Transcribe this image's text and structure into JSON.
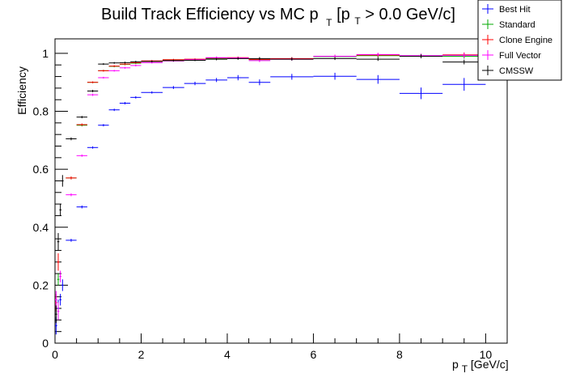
{
  "chart_data": {
    "type": "scatter",
    "title": {
      "pre": "Build Track Efficiency vs MC p",
      "sub1": "T",
      "mid": " [p",
      "sub2": "T",
      "post": " > 0.0 GeV/c]"
    },
    "xlabel": {
      "pre": "p",
      "sub": "T",
      "post": " [GeV/c]"
    },
    "ylabel": "Efficiency",
    "xlim": [
      0,
      10.5
    ],
    "ylim": [
      0,
      1.05
    ],
    "x_ticks": [
      {
        "v": 0,
        "label": "0"
      },
      {
        "v": 2,
        "label": "2"
      },
      {
        "v": 4,
        "label": "4"
      },
      {
        "v": 6,
        "label": "6"
      },
      {
        "v": 8,
        "label": "8"
      },
      {
        "v": 10,
        "label": "10"
      }
    ],
    "y_ticks": [
      {
        "v": 0,
        "label": "0"
      },
      {
        "v": 0.2,
        "label": "0.2"
      },
      {
        "v": 0.4,
        "label": "0.4"
      },
      {
        "v": 0.6,
        "label": "0.6"
      },
      {
        "v": 0.8,
        "label": "0.8"
      },
      {
        "v": 1,
        "label": "1"
      }
    ],
    "legend_position": "top-right",
    "series": [
      {
        "name": "Best Hit",
        "color": "#0000ff",
        "points": [
          {
            "x": 0.025,
            "y": 0.06,
            "xerr": 0.025,
            "yerr": 0.03
          },
          {
            "x": 0.075,
            "y": 0.12,
            "xerr": 0.025,
            "yerr": 0.03
          },
          {
            "x": 0.125,
            "y": 0.15,
            "xerr": 0.025,
            "yerr": 0.02
          },
          {
            "x": 0.175,
            "y": 0.2,
            "xerr": 0.025,
            "yerr": 0.02
          },
          {
            "x": 0.375,
            "y": 0.355,
            "xerr": 0.125,
            "yerr": 0.005
          },
          {
            "x": 0.625,
            "y": 0.47,
            "xerr": 0.125,
            "yerr": 0.005
          },
          {
            "x": 0.875,
            "y": 0.675,
            "xerr": 0.125,
            "yerr": 0.004
          },
          {
            "x": 1.125,
            "y": 0.752,
            "xerr": 0.125,
            "yerr": 0.004
          },
          {
            "x": 1.375,
            "y": 0.805,
            "xerr": 0.125,
            "yerr": 0.004
          },
          {
            "x": 1.625,
            "y": 0.828,
            "xerr": 0.125,
            "yerr": 0.004
          },
          {
            "x": 1.875,
            "y": 0.848,
            "xerr": 0.125,
            "yerr": 0.004
          },
          {
            "x": 2.25,
            "y": 0.865,
            "xerr": 0.25,
            "yerr": 0.004
          },
          {
            "x": 2.75,
            "y": 0.882,
            "xerr": 0.25,
            "yerr": 0.005
          },
          {
            "x": 3.25,
            "y": 0.896,
            "xerr": 0.25,
            "yerr": 0.006
          },
          {
            "x": 3.75,
            "y": 0.908,
            "xerr": 0.25,
            "yerr": 0.007
          },
          {
            "x": 4.25,
            "y": 0.916,
            "xerr": 0.25,
            "yerr": 0.009
          },
          {
            "x": 4.75,
            "y": 0.9,
            "xerr": 0.25,
            "yerr": 0.01
          },
          {
            "x": 5.5,
            "y": 0.919,
            "xerr": 0.5,
            "yerr": 0.01
          },
          {
            "x": 6.5,
            "y": 0.921,
            "xerr": 0.5,
            "yerr": 0.012
          },
          {
            "x": 7.5,
            "y": 0.91,
            "xerr": 0.5,
            "yerr": 0.015
          },
          {
            "x": 8.5,
            "y": 0.862,
            "xerr": 0.5,
            "yerr": 0.02
          },
          {
            "x": 9.5,
            "y": 0.893,
            "xerr": 0.5,
            "yerr": 0.022
          }
        ]
      },
      {
        "name": "Standard",
        "color": "#00aa00",
        "points": [
          {
            "x": 0.075,
            "y": 0.22,
            "xerr": 0.025,
            "yerr": 0.02
          },
          {
            "x": 0.375,
            "y": 0.57,
            "xerr": 0.125,
            "yerr": 0.005
          },
          {
            "x": 0.625,
            "y": 0.752,
            "xerr": 0.125,
            "yerr": 0.004
          },
          {
            "x": 0.875,
            "y": 0.9,
            "xerr": 0.125,
            "yerr": 0.003
          },
          {
            "x": 1.125,
            "y": 0.94,
            "xerr": 0.125,
            "yerr": 0.003
          },
          {
            "x": 1.375,
            "y": 0.955,
            "xerr": 0.125,
            "yerr": 0.003
          },
          {
            "x": 1.625,
            "y": 0.962,
            "xerr": 0.125,
            "yerr": 0.003
          },
          {
            "x": 1.875,
            "y": 0.966,
            "xerr": 0.125,
            "yerr": 0.003
          },
          {
            "x": 2.25,
            "y": 0.972,
            "xerr": 0.25,
            "yerr": 0.003
          },
          {
            "x": 2.75,
            "y": 0.976,
            "xerr": 0.25,
            "yerr": 0.003
          },
          {
            "x": 3.25,
            "y": 0.979,
            "xerr": 0.25,
            "yerr": 0.003
          },
          {
            "x": 3.75,
            "y": 0.982,
            "xerr": 0.25,
            "yerr": 0.004
          },
          {
            "x": 4.25,
            "y": 0.983,
            "xerr": 0.25,
            "yerr": 0.004
          },
          {
            "x": 4.75,
            "y": 0.978,
            "xerr": 0.25,
            "yerr": 0.005
          },
          {
            "x": 5.5,
            "y": 0.981,
            "xerr": 0.5,
            "yerr": 0.005
          },
          {
            "x": 6.5,
            "y": 0.989,
            "xerr": 0.5,
            "yerr": 0.005
          },
          {
            "x": 7.5,
            "y": 0.992,
            "xerr": 0.5,
            "yerr": 0.006
          },
          {
            "x": 8.5,
            "y": 0.99,
            "xerr": 0.5,
            "yerr": 0.007
          },
          {
            "x": 9.5,
            "y": 0.99,
            "xerr": 0.5,
            "yerr": 0.008
          }
        ]
      },
      {
        "name": "Clone Engine",
        "color": "#ff0000",
        "points": [
          {
            "x": 0.025,
            "y": 0.14,
            "xerr": 0.025,
            "yerr": 0.03
          },
          {
            "x": 0.075,
            "y": 0.28,
            "xerr": 0.025,
            "yerr": 0.03
          },
          {
            "x": 0.375,
            "y": 0.57,
            "xerr": 0.125,
            "yerr": 0.005
          },
          {
            "x": 0.625,
            "y": 0.754,
            "xerr": 0.125,
            "yerr": 0.004
          },
          {
            "x": 0.875,
            "y": 0.9,
            "xerr": 0.125,
            "yerr": 0.003
          },
          {
            "x": 1.125,
            "y": 0.94,
            "xerr": 0.125,
            "yerr": 0.003
          },
          {
            "x": 1.375,
            "y": 0.956,
            "xerr": 0.125,
            "yerr": 0.003
          },
          {
            "x": 1.625,
            "y": 0.963,
            "xerr": 0.125,
            "yerr": 0.003
          },
          {
            "x": 1.875,
            "y": 0.968,
            "xerr": 0.125,
            "yerr": 0.003
          },
          {
            "x": 2.25,
            "y": 0.974,
            "xerr": 0.25,
            "yerr": 0.003
          },
          {
            "x": 2.75,
            "y": 0.978,
            "xerr": 0.25,
            "yerr": 0.003
          },
          {
            "x": 3.25,
            "y": 0.98,
            "xerr": 0.25,
            "yerr": 0.003
          },
          {
            "x": 3.75,
            "y": 0.984,
            "xerr": 0.25,
            "yerr": 0.004
          },
          {
            "x": 4.25,
            "y": 0.985,
            "xerr": 0.25,
            "yerr": 0.004
          },
          {
            "x": 4.75,
            "y": 0.979,
            "xerr": 0.25,
            "yerr": 0.005
          },
          {
            "x": 5.5,
            "y": 0.982,
            "xerr": 0.5,
            "yerr": 0.005
          },
          {
            "x": 6.5,
            "y": 0.99,
            "xerr": 0.5,
            "yerr": 0.005
          },
          {
            "x": 7.5,
            "y": 0.994,
            "xerr": 0.5,
            "yerr": 0.006
          },
          {
            "x": 8.5,
            "y": 0.991,
            "xerr": 0.5,
            "yerr": 0.007
          },
          {
            "x": 9.5,
            "y": 0.995,
            "xerr": 0.5,
            "yerr": 0.008
          }
        ]
      },
      {
        "name": "Full Vector",
        "color": "#ff00ff",
        "points": [
          {
            "x": 0.025,
            "y": 0.15,
            "xerr": 0.025,
            "yerr": 0.03
          },
          {
            "x": 0.075,
            "y": 0.11,
            "xerr": 0.025,
            "yerr": 0.03
          },
          {
            "x": 0.125,
            "y": 0.23,
            "xerr": 0.025,
            "yerr": 0.02
          },
          {
            "x": 0.375,
            "y": 0.512,
            "xerr": 0.125,
            "yerr": 0.005
          },
          {
            "x": 0.625,
            "y": 0.647,
            "xerr": 0.125,
            "yerr": 0.004
          },
          {
            "x": 0.875,
            "y": 0.857,
            "xerr": 0.125,
            "yerr": 0.004
          },
          {
            "x": 1.125,
            "y": 0.916,
            "xerr": 0.125,
            "yerr": 0.003
          },
          {
            "x": 1.375,
            "y": 0.94,
            "xerr": 0.125,
            "yerr": 0.003
          },
          {
            "x": 1.625,
            "y": 0.95,
            "xerr": 0.125,
            "yerr": 0.003
          },
          {
            "x": 1.875,
            "y": 0.958,
            "xerr": 0.125,
            "yerr": 0.003
          },
          {
            "x": 2.25,
            "y": 0.968,
            "xerr": 0.25,
            "yerr": 0.003
          },
          {
            "x": 2.75,
            "y": 0.974,
            "xerr": 0.25,
            "yerr": 0.003
          },
          {
            "x": 3.25,
            "y": 0.978,
            "xerr": 0.25,
            "yerr": 0.003
          },
          {
            "x": 3.75,
            "y": 0.985,
            "xerr": 0.25,
            "yerr": 0.004
          },
          {
            "x": 4.25,
            "y": 0.984,
            "xerr": 0.25,
            "yerr": 0.004
          },
          {
            "x": 4.75,
            "y": 0.975,
            "xerr": 0.25,
            "yerr": 0.005
          },
          {
            "x": 5.5,
            "y": 0.98,
            "xerr": 0.5,
            "yerr": 0.005
          },
          {
            "x": 6.5,
            "y": 0.99,
            "xerr": 0.5,
            "yerr": 0.005
          },
          {
            "x": 7.5,
            "y": 0.996,
            "xerr": 0.5,
            "yerr": 0.006
          },
          {
            "x": 8.5,
            "y": 0.992,
            "xerr": 0.5,
            "yerr": 0.007
          },
          {
            "x": 9.5,
            "y": 0.993,
            "xerr": 0.5,
            "yerr": 0.008
          }
        ]
      },
      {
        "name": "CMSSW",
        "color": "#000000",
        "points": [
          {
            "x": 0.025,
            "y": 0.1,
            "xerr": 0.025,
            "yerr": 0.03
          },
          {
            "x": 0.075,
            "y": 0.35,
            "xerr": 0.025,
            "yerr": 0.03
          },
          {
            "x": 0.125,
            "y": 0.46,
            "xerr": 0.025,
            "yerr": 0.02
          },
          {
            "x": 0.175,
            "y": 0.56,
            "xerr": 0.025,
            "yerr": 0.02
          },
          {
            "x": 0.375,
            "y": 0.705,
            "xerr": 0.125,
            "yerr": 0.005
          },
          {
            "x": 0.625,
            "y": 0.78,
            "xerr": 0.125,
            "yerr": 0.004
          },
          {
            "x": 0.875,
            "y": 0.87,
            "xerr": 0.125,
            "yerr": 0.004
          },
          {
            "x": 1.125,
            "y": 0.963,
            "xerr": 0.125,
            "yerr": 0.003
          },
          {
            "x": 1.375,
            "y": 0.967,
            "xerr": 0.125,
            "yerr": 0.003
          },
          {
            "x": 1.625,
            "y": 0.968,
            "xerr": 0.125,
            "yerr": 0.003
          },
          {
            "x": 1.875,
            "y": 0.971,
            "xerr": 0.125,
            "yerr": 0.003
          },
          {
            "x": 2.25,
            "y": 0.972,
            "xerr": 0.25,
            "yerr": 0.003
          },
          {
            "x": 2.75,
            "y": 0.975,
            "xerr": 0.25,
            "yerr": 0.003
          },
          {
            "x": 3.25,
            "y": 0.976,
            "xerr": 0.25,
            "yerr": 0.003
          },
          {
            "x": 3.75,
            "y": 0.98,
            "xerr": 0.25,
            "yerr": 0.004
          },
          {
            "x": 4.25,
            "y": 0.982,
            "xerr": 0.25,
            "yerr": 0.004
          },
          {
            "x": 4.75,
            "y": 0.982,
            "xerr": 0.25,
            "yerr": 0.005
          },
          {
            "x": 5.5,
            "y": 0.98,
            "xerr": 0.5,
            "yerr": 0.005
          },
          {
            "x": 6.5,
            "y": 0.982,
            "xerr": 0.5,
            "yerr": 0.005
          },
          {
            "x": 7.5,
            "y": 0.98,
            "xerr": 0.5,
            "yerr": 0.006
          },
          {
            "x": 8.5,
            "y": 0.99,
            "xerr": 0.5,
            "yerr": 0.007
          },
          {
            "x": 9.5,
            "y": 0.97,
            "xerr": 0.5,
            "yerr": 0.008
          }
        ]
      }
    ]
  }
}
